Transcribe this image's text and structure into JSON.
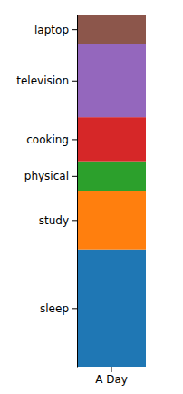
{
  "chart_data": {
    "type": "bar",
    "stacked": true,
    "tick_labels": "x",
    "categories": [
      "A Day"
    ],
    "ylim": [
      0,
      24
    ],
    "series": [
      {
        "name": "sleep",
        "color": "#1f77b4",
        "values": [
          8
        ]
      },
      {
        "name": "study",
        "color": "#ff7f0e",
        "values": [
          4
        ]
      },
      {
        "name": "physical",
        "color": "#2ca02c",
        "values": [
          2
        ]
      },
      {
        "name": "cooking",
        "color": "#d62728",
        "values": [
          3
        ]
      },
      {
        "name": "television",
        "color": "#9467bd",
        "values": [
          5
        ]
      },
      {
        "name": "laptop",
        "color": "#8c564b",
        "values": [
          2
        ]
      }
    ]
  }
}
